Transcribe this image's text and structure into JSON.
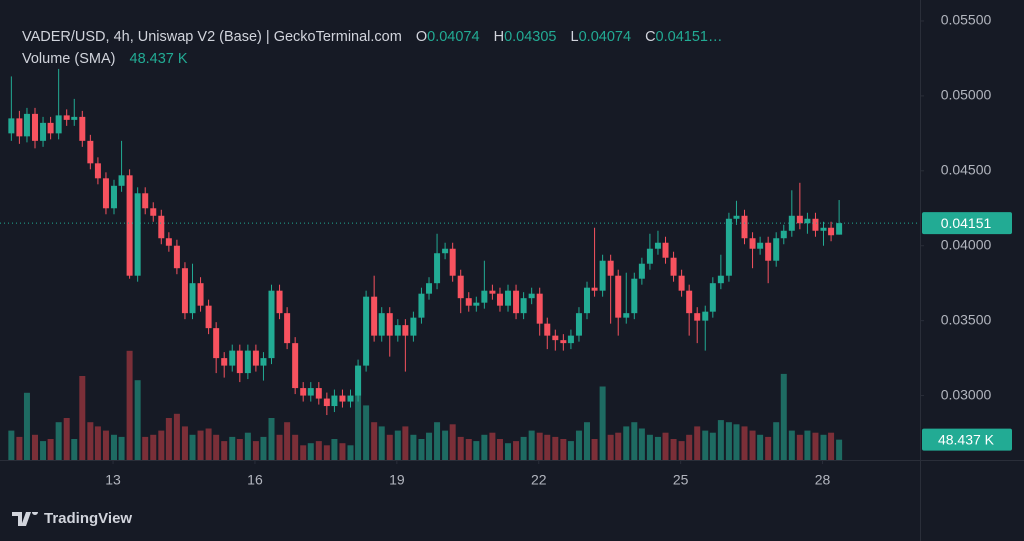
{
  "chart_data": {
    "type": "candlestick",
    "title": "VADER/USD, 4h, Uniswap V2 (Base) | GeckoTerminal.com",
    "legend_labels": [
      "O",
      "H",
      "L",
      "C"
    ],
    "legend_close_text": "0.04151…",
    "volume_title": "Volume (SMA)",
    "last_volume_label": "48.437 K",
    "branding": "TradingView",
    "x": [
      10.85,
      11.02,
      11.18,
      11.35,
      11.52,
      11.68,
      11.85,
      12.02,
      12.18,
      12.35,
      12.52,
      12.68,
      12.85,
      13.02,
      13.18,
      13.35,
      13.52,
      13.68,
      13.85,
      14.02,
      14.18,
      14.35,
      14.52,
      14.68,
      14.85,
      15.02,
      15.18,
      15.35,
      15.52,
      15.68,
      15.85,
      16.02,
      16.18,
      16.35,
      16.52,
      16.68,
      16.85,
      17.02,
      17.18,
      17.35,
      17.52,
      17.68,
      17.85,
      18.02,
      18.18,
      18.35,
      18.52,
      18.68,
      18.85,
      19.02,
      19.18,
      19.35,
      19.52,
      19.68,
      19.85,
      20.02,
      20.18,
      20.35,
      20.52,
      20.68,
      20.85,
      21.02,
      21.18,
      21.35,
      21.52,
      21.68,
      21.85,
      22.02,
      22.18,
      22.35,
      22.52,
      22.68,
      22.85,
      23.02,
      23.18,
      23.35,
      23.52,
      23.68,
      23.85,
      24.02,
      24.18,
      24.35,
      24.52,
      24.68,
      24.85,
      25.02,
      25.18,
      25.35,
      25.52,
      25.68,
      25.85,
      26.02,
      26.18,
      26.35,
      26.52,
      26.68,
      26.85,
      27.02,
      27.18,
      27.35,
      27.52,
      27.68,
      27.85,
      28.02,
      28.18,
      28.35
    ],
    "open": [
      0.0475,
      0.0485,
      0.0473,
      0.0488,
      0.047,
      0.0482,
      0.0475,
      0.0487,
      0.0484,
      0.0486,
      0.047,
      0.0455,
      0.0445,
      0.0425,
      0.044,
      0.0447,
      0.038,
      0.0435,
      0.0425,
      0.042,
      0.0405,
      0.04,
      0.0385,
      0.0355,
      0.0375,
      0.036,
      0.0345,
      0.0325,
      0.032,
      0.033,
      0.0315,
      0.033,
      0.032,
      0.0325,
      0.037,
      0.0355,
      0.0335,
      0.0305,
      0.03,
      0.0305,
      0.0298,
      0.0293,
      0.03,
      0.0296,
      0.03,
      0.032,
      0.0366,
      0.034,
      0.0355,
      0.034,
      0.0347,
      0.034,
      0.0352,
      0.0368,
      0.0375,
      0.0395,
      0.0398,
      0.038,
      0.0365,
      0.036,
      0.0362,
      0.037,
      0.0368,
      0.036,
      0.037,
      0.0355,
      0.0365,
      0.0368,
      0.0348,
      0.034,
      0.0337,
      0.0335,
      0.034,
      0.0355,
      0.0372,
      0.037,
      0.039,
      0.038,
      0.0352,
      0.0355,
      0.0378,
      0.0388,
      0.0398,
      0.0402,
      0.0392,
      0.038,
      0.037,
      0.0355,
      0.035,
      0.0356,
      0.0375,
      0.038,
      0.0418,
      0.042,
      0.0405,
      0.0398,
      0.0402,
      0.039,
      0.0405,
      0.041,
      0.042,
      0.0415,
      0.0418,
      0.041,
      0.0412,
      0.04074
    ],
    "high": [
      0.0513,
      0.049,
      0.0492,
      0.0492,
      0.0486,
      0.0486,
      0.0518,
      0.0491,
      0.0498,
      0.049,
      0.0474,
      0.0459,
      0.0449,
      0.0444,
      0.047,
      0.0451,
      0.0439,
      0.0439,
      0.0429,
      0.0424,
      0.0409,
      0.0404,
      0.0389,
      0.0388,
      0.0379,
      0.0364,
      0.0349,
      0.0329,
      0.0334,
      0.0334,
      0.0334,
      0.0334,
      0.0329,
      0.0374,
      0.0374,
      0.0359,
      0.0339,
      0.0309,
      0.0309,
      0.0309,
      0.0302,
      0.0304,
      0.0304,
      0.0304,
      0.0324,
      0.037,
      0.038,
      0.0359,
      0.0359,
      0.0351,
      0.0351,
      0.0356,
      0.0372,
      0.0379,
      0.0408,
      0.0402,
      0.0402,
      0.0384,
      0.0369,
      0.0366,
      0.039,
      0.0374,
      0.0372,
      0.0374,
      0.0374,
      0.0369,
      0.0372,
      0.0372,
      0.0352,
      0.0344,
      0.0341,
      0.0344,
      0.0359,
      0.0376,
      0.0412,
      0.0394,
      0.0394,
      0.0384,
      0.0382,
      0.0382,
      0.0392,
      0.0408,
      0.041,
      0.0406,
      0.0396,
      0.0384,
      0.0374,
      0.0359,
      0.036,
      0.0379,
      0.0394,
      0.0422,
      0.043,
      0.0424,
      0.0409,
      0.0406,
      0.0406,
      0.0409,
      0.0414,
      0.0437,
      0.0442,
      0.0422,
      0.0422,
      0.0416,
      0.0416,
      0.04305
    ],
    "low": [
      0.047,
      0.0468,
      0.0469,
      0.0465,
      0.0466,
      0.0471,
      0.0471,
      0.048,
      0.048,
      0.0466,
      0.0451,
      0.0441,
      0.0421,
      0.0421,
      0.0436,
      0.0378,
      0.0376,
      0.0421,
      0.0416,
      0.0401,
      0.0396,
      0.0381,
      0.0351,
      0.0351,
      0.0356,
      0.0341,
      0.0315,
      0.0312,
      0.0316,
      0.0309,
      0.0311,
      0.0316,
      0.031,
      0.0321,
      0.0351,
      0.0331,
      0.0301,
      0.0296,
      0.0296,
      0.0294,
      0.0287,
      0.0289,
      0.0292,
      0.0292,
      0.0296,
      0.0316,
      0.0336,
      0.0336,
      0.0326,
      0.0336,
      0.0316,
      0.0336,
      0.0348,
      0.0364,
      0.0371,
      0.0391,
      0.0376,
      0.0355,
      0.0356,
      0.0356,
      0.0358,
      0.0364,
      0.0356,
      0.0356,
      0.0351,
      0.0351,
      0.0361,
      0.034,
      0.0331,
      0.033,
      0.033,
      0.0331,
      0.0336,
      0.0351,
      0.0366,
      0.0366,
      0.0348,
      0.034,
      0.0348,
      0.0351,
      0.0374,
      0.0384,
      0.0394,
      0.0388,
      0.0376,
      0.0366,
      0.034,
      0.0335,
      0.033,
      0.0352,
      0.0371,
      0.0376,
      0.0414,
      0.0401,
      0.0385,
      0.0394,
      0.0375,
      0.0386,
      0.0401,
      0.0406,
      0.0411,
      0.0408,
      0.0406,
      0.04,
      0.0403,
      0.04074
    ],
    "close": [
      0.0485,
      0.0473,
      0.0488,
      0.047,
      0.0482,
      0.0475,
      0.0487,
      0.0484,
      0.0486,
      0.047,
      0.0455,
      0.0445,
      0.0425,
      0.044,
      0.0447,
      0.038,
      0.0435,
      0.0425,
      0.042,
      0.0405,
      0.04,
      0.0385,
      0.0355,
      0.0375,
      0.036,
      0.0345,
      0.0325,
      0.032,
      0.033,
      0.0315,
      0.033,
      0.032,
      0.0325,
      0.037,
      0.0355,
      0.0335,
      0.0305,
      0.03,
      0.0305,
      0.0298,
      0.0293,
      0.03,
      0.0296,
      0.03,
      0.032,
      0.0366,
      0.034,
      0.0355,
      0.034,
      0.0347,
      0.034,
      0.0352,
      0.0368,
      0.0375,
      0.0395,
      0.0398,
      0.038,
      0.0365,
      0.036,
      0.0362,
      0.037,
      0.0368,
      0.036,
      0.037,
      0.0355,
      0.0365,
      0.0368,
      0.0348,
      0.034,
      0.0337,
      0.0335,
      0.034,
      0.0355,
      0.0372,
      0.037,
      0.039,
      0.038,
      0.0352,
      0.0355,
      0.0378,
      0.0388,
      0.0398,
      0.0402,
      0.0392,
      0.038,
      0.037,
      0.0355,
      0.035,
      0.0356,
      0.0375,
      0.038,
      0.0418,
      0.042,
      0.0405,
      0.0398,
      0.0402,
      0.039,
      0.0405,
      0.041,
      0.042,
      0.0415,
      0.0418,
      0.041,
      0.0412,
      0.0407,
      0.04151
    ],
    "volume": [
      70,
      55,
      160,
      60,
      45,
      50,
      90,
      100,
      50,
      200,
      90,
      80,
      70,
      60,
      55,
      260,
      190,
      55,
      60,
      70,
      100,
      110,
      80,
      60,
      70,
      75,
      60,
      45,
      55,
      50,
      65,
      45,
      55,
      100,
      60,
      90,
      60,
      35,
      40,
      45,
      35,
      50,
      40,
      35,
      220,
      130,
      90,
      80,
      60,
      70,
      80,
      60,
      50,
      65,
      90,
      70,
      85,
      55,
      50,
      45,
      60,
      65,
      50,
      40,
      45,
      55,
      70,
      65,
      60,
      55,
      50,
      45,
      70,
      90,
      50,
      175,
      60,
      65,
      80,
      90,
      75,
      60,
      55,
      65,
      50,
      45,
      60,
      80,
      70,
      65,
      95,
      90,
      85,
      80,
      70,
      60,
      55,
      90,
      205,
      70,
      60,
      70,
      65,
      60,
      65,
      48.437
    ],
    "ylim": [
      0.0257,
      0.0564
    ],
    "yticks": [
      {
        "value": 0.03,
        "label": "0.03000"
      },
      {
        "value": 0.035,
        "label": "0.03500"
      },
      {
        "value": 0.04,
        "label": "0.04000"
      },
      {
        "value": 0.045,
        "label": "0.04500"
      },
      {
        "value": 0.05,
        "label": "0.05000"
      },
      {
        "value": 0.055,
        "label": "0.05500"
      }
    ],
    "xlim": [
      10.61,
      30.06
    ],
    "xticks": [
      13,
      16,
      19,
      22,
      25,
      28
    ],
    "grid": false,
    "up_color": "#22ab94",
    "down_color": "#f7525f",
    "volume_up_color": "#1e6b62",
    "volume_down_color": "#7b2f38"
  }
}
